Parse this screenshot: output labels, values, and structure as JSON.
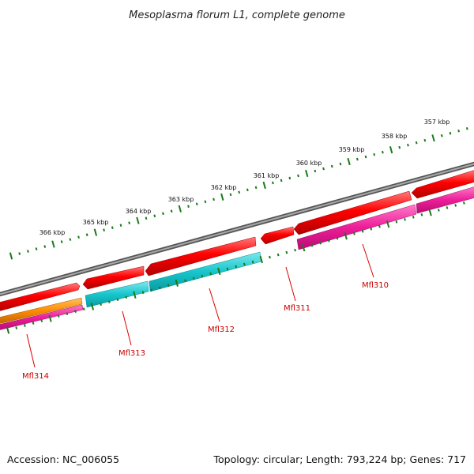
{
  "title": "Mesoplasma florum L1, complete genome",
  "footer": {
    "accession": "Accession: NC_006055",
    "summary": "Topology: circular; Length: 793,224 bp; Genes: 717"
  },
  "colors": {
    "backbone": "#777777",
    "cds": "#ff0000",
    "trna": "#00bfc4",
    "rrna": "#e0198c",
    "misc": "#ff8c00",
    "ticks": "#1a7a1a",
    "gene_label": "#cc0000"
  },
  "scale_ticks": [
    "366 kbp",
    "365 kbp",
    "364 kbp",
    "363 kbp",
    "362 kbp",
    "361 kbp",
    "360 kbp",
    "359 kbp",
    "358 kbp",
    "357 kbp"
  ],
  "genes": [
    "Mfl314",
    "Mfl313",
    "Mfl312",
    "Mfl311",
    "Mfl310"
  ]
}
